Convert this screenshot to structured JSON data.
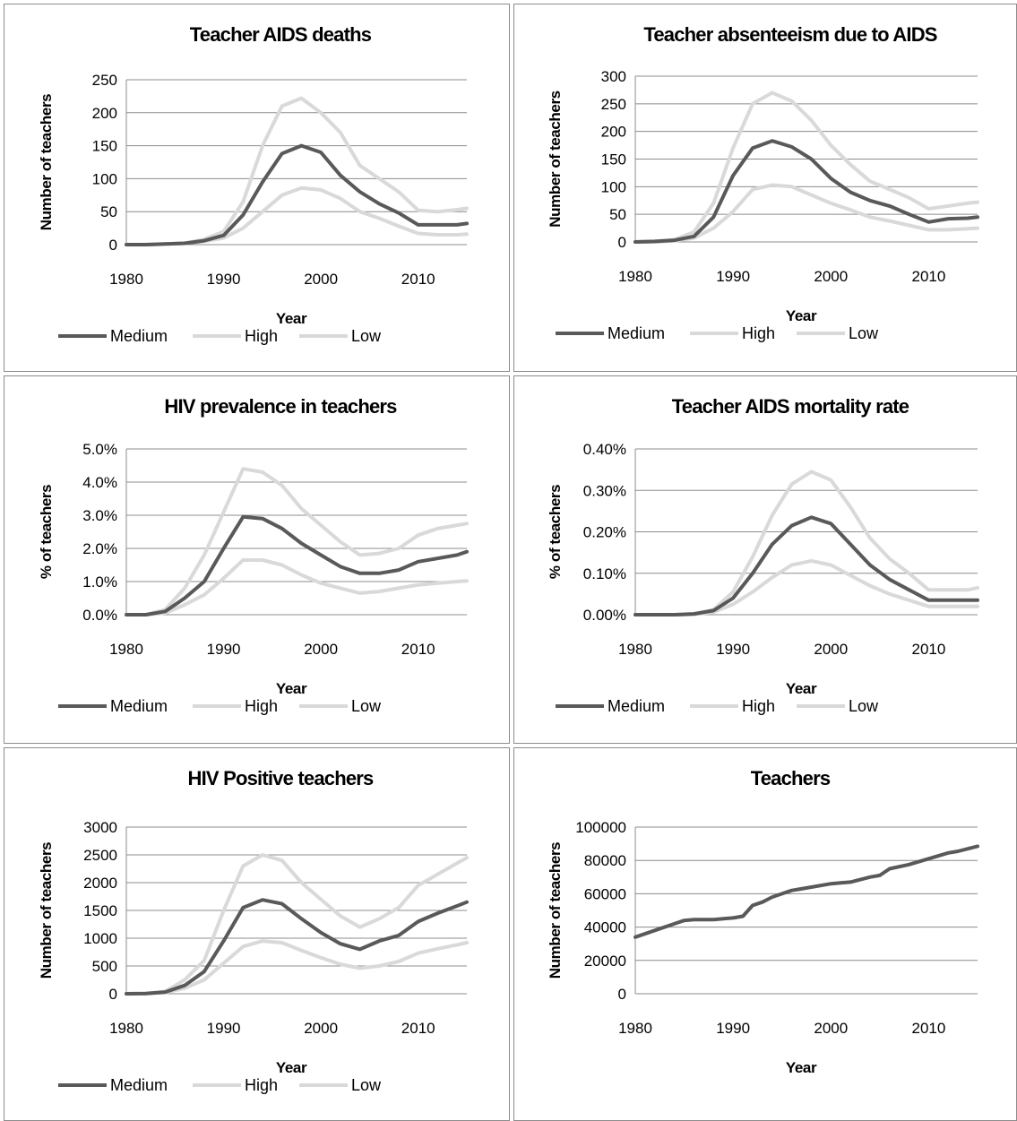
{
  "legend": {
    "medium": "Medium",
    "high": "High",
    "low": "Low"
  },
  "colors": {
    "medium": "#595959",
    "high": "#d9d9d9",
    "low": "#d9d9d9",
    "grid": "#8c8c8c"
  },
  "chart_data": [
    {
      "id": "deaths",
      "type": "line",
      "title": "Teacher AIDS deaths",
      "xlabel": "Year",
      "ylabel": "Number of teachers",
      "xlim": [
        1980,
        2015
      ],
      "ylim": [
        0,
        250
      ],
      "xticks": [
        "1980",
        "1990",
        "2000",
        "2010"
      ],
      "yticks": [
        "0",
        "50",
        "100",
        "150",
        "200",
        "250"
      ],
      "legend_position": "bottom",
      "series": [
        {
          "name": "Medium",
          "x": [
            1980,
            1982,
            1984,
            1986,
            1988,
            1990,
            1992,
            1994,
            1996,
            1998,
            2000,
            2002,
            2004,
            2006,
            2008,
            2010,
            2012,
            2014,
            2015
          ],
          "values": [
            0,
            0,
            1,
            2,
            6,
            14,
            45,
            95,
            138,
            150,
            140,
            105,
            80,
            62,
            48,
            30,
            30,
            30,
            32
          ]
        },
        {
          "name": "High",
          "x": [
            1980,
            1982,
            1984,
            1986,
            1988,
            1990,
            1992,
            1994,
            1996,
            1998,
            2000,
            2002,
            2004,
            2006,
            2008,
            2010,
            2012,
            2014,
            2015
          ],
          "values": [
            0,
            0,
            1,
            2,
            8,
            20,
            65,
            150,
            210,
            222,
            200,
            170,
            120,
            100,
            80,
            52,
            50,
            53,
            55
          ]
        },
        {
          "name": "Low",
          "x": [
            1980,
            1982,
            1984,
            1986,
            1988,
            1990,
            1992,
            1994,
            1996,
            1998,
            2000,
            2002,
            2004,
            2006,
            2008,
            2010,
            2012,
            2014,
            2015
          ],
          "values": [
            0,
            0,
            1,
            2,
            5,
            10,
            25,
            50,
            75,
            86,
            83,
            70,
            50,
            40,
            28,
            17,
            15,
            15,
            16
          ]
        }
      ]
    },
    {
      "id": "absenteeism",
      "type": "line",
      "title": "Teacher absenteeism due to AIDS",
      "xlabel": "Year",
      "ylabel": "Number of teachers",
      "xlim": [
        1980,
        2015
      ],
      "ylim": [
        0,
        300
      ],
      "xticks": [
        "1980",
        "1990",
        "2000",
        "2010"
      ],
      "yticks": [
        "0",
        "50",
        "100",
        "150",
        "200",
        "250",
        "300"
      ],
      "legend_position": "bottom",
      "series": [
        {
          "name": "Medium",
          "x": [
            1980,
            1982,
            1984,
            1986,
            1988,
            1990,
            1992,
            1994,
            1996,
            1998,
            2000,
            2002,
            2004,
            2006,
            2008,
            2010,
            2012,
            2014,
            2015
          ],
          "values": [
            0,
            1,
            3,
            10,
            45,
            120,
            170,
            183,
            172,
            150,
            115,
            90,
            75,
            65,
            50,
            36,
            42,
            43,
            45
          ]
        },
        {
          "name": "High",
          "x": [
            1980,
            1982,
            1984,
            1986,
            1988,
            1990,
            1992,
            1994,
            1996,
            1998,
            2000,
            2002,
            2004,
            2006,
            2008,
            2010,
            2012,
            2014,
            2015
          ],
          "values": [
            0,
            1,
            4,
            18,
            70,
            170,
            250,
            270,
            255,
            220,
            175,
            140,
            110,
            95,
            80,
            60,
            65,
            70,
            72
          ]
        },
        {
          "name": "Low",
          "x": [
            1980,
            1982,
            1984,
            1986,
            1988,
            1990,
            1992,
            1994,
            1996,
            1998,
            2000,
            2002,
            2004,
            2006,
            2008,
            2010,
            2012,
            2014,
            2015
          ],
          "values": [
            0,
            0,
            2,
            7,
            25,
            55,
            95,
            103,
            100,
            85,
            70,
            58,
            45,
            38,
            30,
            22,
            22,
            24,
            25
          ]
        }
      ]
    },
    {
      "id": "prevalence",
      "type": "line",
      "title": "HIV prevalence in teachers",
      "xlabel": "Year",
      "ylabel": "% of teachers",
      "xlim": [
        1980,
        2015
      ],
      "ylim": [
        0,
        5
      ],
      "xticks": [
        "1980",
        "1990",
        "2000",
        "2010"
      ],
      "yticks": [
        "0.0%",
        "1.0%",
        "2.0%",
        "3.0%",
        "4.0%",
        "5.0%"
      ],
      "legend_position": "bottom",
      "series": [
        {
          "name": "Medium",
          "x": [
            1980,
            1982,
            1984,
            1986,
            1988,
            1990,
            1992,
            1994,
            1996,
            1998,
            2000,
            2002,
            2004,
            2006,
            2008,
            2010,
            2012,
            2014,
            2015
          ],
          "values": [
            0,
            0,
            0.1,
            0.5,
            1.0,
            2.0,
            2.95,
            2.9,
            2.6,
            2.15,
            1.8,
            1.45,
            1.25,
            1.25,
            1.35,
            1.6,
            1.7,
            1.8,
            1.9
          ]
        },
        {
          "name": "High",
          "x": [
            1980,
            1982,
            1984,
            1986,
            1988,
            1990,
            1992,
            1994,
            1996,
            1998,
            2000,
            2002,
            2004,
            2006,
            2008,
            2010,
            2012,
            2014,
            2015
          ],
          "values": [
            0,
            0,
            0.15,
            0.8,
            1.8,
            3.1,
            4.4,
            4.3,
            3.9,
            3.2,
            2.7,
            2.2,
            1.8,
            1.85,
            2.0,
            2.4,
            2.6,
            2.7,
            2.75
          ]
        },
        {
          "name": "Low",
          "x": [
            1980,
            1982,
            1984,
            1986,
            1988,
            1990,
            1992,
            1994,
            1996,
            1998,
            2000,
            2002,
            2004,
            2006,
            2008,
            2010,
            2012,
            2014,
            2015
          ],
          "values": [
            0,
            0,
            0.05,
            0.3,
            0.6,
            1.1,
            1.65,
            1.65,
            1.5,
            1.2,
            0.95,
            0.8,
            0.65,
            0.7,
            0.8,
            0.9,
            0.95,
            1.0,
            1.02
          ]
        }
      ]
    },
    {
      "id": "mortality",
      "type": "line",
      "title": "Teacher AIDS mortality rate",
      "xlabel": "Year",
      "ylabel": "% of teachers",
      "xlim": [
        1980,
        2015
      ],
      "ylim": [
        0,
        0.4
      ],
      "xticks": [
        "1980",
        "1990",
        "2000",
        "2010"
      ],
      "yticks": [
        "0.00%",
        "0.10%",
        "0.20%",
        "0.30%",
        "0.40%"
      ],
      "legend_position": "bottom",
      "series": [
        {
          "name": "Medium",
          "x": [
            1980,
            1982,
            1984,
            1986,
            1988,
            1990,
            1992,
            1994,
            1996,
            1998,
            2000,
            2002,
            2004,
            2006,
            2008,
            2010,
            2012,
            2014,
            2015
          ],
          "values": [
            0,
            0,
            0,
            0.002,
            0.01,
            0.04,
            0.1,
            0.17,
            0.215,
            0.235,
            0.22,
            0.17,
            0.12,
            0.085,
            0.06,
            0.035,
            0.035,
            0.035,
            0.035
          ]
        },
        {
          "name": "High",
          "x": [
            1980,
            1982,
            1984,
            1986,
            1988,
            1990,
            1992,
            1994,
            1996,
            1998,
            2000,
            2002,
            2004,
            2006,
            2008,
            2010,
            2012,
            2014,
            2015
          ],
          "values": [
            0,
            0,
            0,
            0.002,
            0.012,
            0.055,
            0.14,
            0.24,
            0.315,
            0.345,
            0.325,
            0.26,
            0.185,
            0.135,
            0.1,
            0.06,
            0.06,
            0.06,
            0.065
          ]
        },
        {
          "name": "Low",
          "x": [
            1980,
            1982,
            1984,
            1986,
            1988,
            1990,
            1992,
            1994,
            1996,
            1998,
            2000,
            2002,
            2004,
            2006,
            2008,
            2010,
            2012,
            2014,
            2015
          ],
          "values": [
            0,
            0,
            0,
            0.001,
            0.006,
            0.025,
            0.055,
            0.09,
            0.12,
            0.13,
            0.12,
            0.095,
            0.07,
            0.05,
            0.035,
            0.02,
            0.02,
            0.02,
            0.02
          ]
        }
      ]
    },
    {
      "id": "positive",
      "type": "line",
      "title": "HIV Positive teachers",
      "xlabel": "Year",
      "ylabel": "Number of teachers",
      "xlim": [
        1980,
        2015
      ],
      "ylim": [
        0,
        3000
      ],
      "xticks": [
        "1980",
        "1990",
        "2000",
        "2010"
      ],
      "yticks": [
        "0",
        "500",
        "1000",
        "1500",
        "2000",
        "2500",
        "3000"
      ],
      "legend_position": "bottom",
      "series": [
        {
          "name": "Medium",
          "x": [
            1980,
            1982,
            1984,
            1986,
            1988,
            1990,
            1992,
            1994,
            1996,
            1998,
            2000,
            2002,
            2004,
            2006,
            2008,
            2010,
            2012,
            2014,
            2015
          ],
          "values": [
            0,
            5,
            30,
            150,
            400,
            950,
            1550,
            1690,
            1620,
            1350,
            1100,
            900,
            800,
            950,
            1050,
            1300,
            1450,
            1580,
            1650
          ]
        },
        {
          "name": "High",
          "x": [
            1980,
            1982,
            1984,
            1986,
            1988,
            1990,
            1992,
            1994,
            1996,
            1998,
            2000,
            2002,
            2004,
            2006,
            2008,
            2010,
            2012,
            2014,
            2015
          ],
          "values": [
            0,
            5,
            40,
            250,
            600,
            1500,
            2300,
            2500,
            2400,
            2000,
            1700,
            1400,
            1200,
            1350,
            1550,
            1950,
            2150,
            2350,
            2450
          ]
        },
        {
          "name": "Low",
          "x": [
            1980,
            1982,
            1984,
            1986,
            1988,
            1990,
            1992,
            1994,
            1996,
            1998,
            2000,
            2002,
            2004,
            2006,
            2008,
            2010,
            2012,
            2014,
            2015
          ],
          "values": [
            0,
            3,
            20,
            100,
            250,
            550,
            850,
            950,
            920,
            780,
            650,
            530,
            460,
            500,
            580,
            730,
            810,
            880,
            920
          ]
        }
      ]
    },
    {
      "id": "teachers",
      "type": "line",
      "title": "Teachers",
      "xlabel": "Year",
      "ylabel": "Number of teachers",
      "xlim": [
        1980,
        2015
      ],
      "ylim": [
        0,
        100000
      ],
      "xticks": [
        "1980",
        "1990",
        "2000",
        "2010"
      ],
      "yticks": [
        "0",
        "20000",
        "40000",
        "60000",
        "80000",
        "100000"
      ],
      "legend_position": "none",
      "series": [
        {
          "x": [
            1980,
            1982,
            1984,
            1985,
            1986,
            1988,
            1989,
            1990,
            1991,
            1992,
            1993,
            1994,
            1995,
            1996,
            1998,
            2000,
            2001,
            2002,
            2004,
            2005,
            2006,
            2008,
            2010,
            2012,
            2013,
            2014,
            2015
          ],
          "values": [
            34000,
            38000,
            42000,
            44000,
            44500,
            44500,
            45000,
            45500,
            46500,
            53000,
            55000,
            58000,
            60000,
            62000,
            64000,
            66000,
            66500,
            67000,
            70000,
            71000,
            75000,
            77500,
            81000,
            84500,
            85500,
            87000,
            88500
          ]
        }
      ]
    }
  ]
}
